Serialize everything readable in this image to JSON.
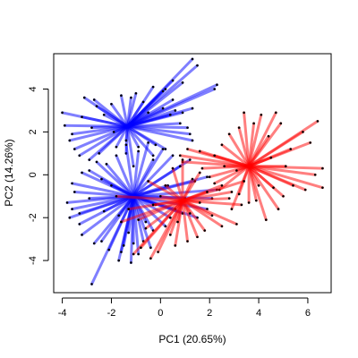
{
  "chart_data": {
    "type": "scatter",
    "subtype": "biplot-star",
    "title": "",
    "xlabel": "PC1 (20.65%)",
    "ylabel": "PC2 (14.26%)",
    "xlim": [
      -4.35,
      6.95
    ],
    "ylim": [
      -5.5,
      5.65
    ],
    "xticks": [
      -4,
      -2,
      0,
      2,
      4,
      6
    ],
    "xtick_labels": [
      "-4",
      "-2",
      "0",
      "2",
      "4",
      "6"
    ],
    "yticks": [
      -4,
      -2,
      0,
      2,
      4
    ],
    "ytick_labels": [
      "-4",
      "-2",
      "0",
      "2",
      "4"
    ],
    "grid": false,
    "legend": "none",
    "colors": {
      "blue": "#0000ff",
      "red": "#ff0000",
      "point": "#000000",
      "frame": "#000000"
    },
    "series": [
      {
        "color": "#0000ff",
        "stars": [
          {
            "centroid": [
              -1.35,
              2.25
            ],
            "points": [
              [
                1.3,
                5.4
              ],
              [
                1.5,
                5.1
              ],
              [
                2.3,
                4.2
              ],
              [
                2.2,
                4.0
              ],
              [
                0.5,
                4.4
              ],
              [
                0.9,
                4.3
              ],
              [
                -0.3,
                4.1
              ],
              [
                0.2,
                4.0
              ],
              [
                -1.0,
                3.8
              ],
              [
                -1.6,
                3.7
              ],
              [
                0.1,
                3.9
              ],
              [
                0.5,
                3.5
              ],
              [
                1.3,
                3.1
              ],
              [
                0.6,
                3.0
              ],
              [
                0.4,
                2.8
              ],
              [
                0.8,
                2.4
              ],
              [
                1.1,
                2.2
              ],
              [
                1.2,
                1.9
              ],
              [
                1.3,
                1.6
              ],
              [
                0.2,
                1.2
              ],
              [
                -0.3,
                0.9
              ],
              [
                -0.2,
                1.4
              ],
              [
                -0.9,
                1.3
              ],
              [
                -1.4,
                1.6
              ],
              [
                -1.8,
                1.3
              ],
              [
                -2.5,
                1.0
              ],
              [
                -2.9,
                0.7
              ],
              [
                -3.5,
                1.2
              ],
              [
                -3.7,
                1.6
              ],
              [
                -3.6,
                1.9
              ],
              [
                -3.9,
                2.3
              ],
              [
                -4.0,
                2.9
              ],
              [
                -3.2,
                2.7
              ],
              [
                -2.8,
                2.2
              ],
              [
                -2.6,
                3.2
              ],
              [
                -2.7,
                3.5
              ],
              [
                -3.1,
                3.6
              ],
              [
                -2.0,
                3.3
              ],
              [
                -2.3,
                2.8
              ],
              [
                -1.9,
                2.0
              ],
              [
                -1.4,
                1.0
              ],
              [
                -1.1,
                0.4
              ],
              [
                0.1,
                3.1
              ],
              [
                -0.5,
                2.9
              ],
              [
                -0.7,
                3.4
              ],
              [
                -1.2,
                3.6
              ],
              [
                0.9,
                2.9
              ],
              [
                -3.3,
                0.9
              ]
            ]
          },
          {
            "centroid": [
              -1.1,
              -1.0
            ],
            "points": [
              [
                -3.6,
                -0.4
              ],
              [
                -3.5,
                -0.8
              ],
              [
                -3.8,
                -1.3
              ],
              [
                -3.6,
                -1.6
              ],
              [
                -3.7,
                -2.0
              ],
              [
                -3.3,
                -2.3
              ],
              [
                -3.2,
                -2.8
              ],
              [
                -2.7,
                -3.2
              ],
              [
                -2.4,
                -3.1
              ],
              [
                -2.1,
                -3.5
              ],
              [
                -2.8,
                -5.1
              ],
              [
                -1.7,
                -4.0
              ],
              [
                -1.6,
                -3.6
              ],
              [
                -1.5,
                -3.3
              ],
              [
                -1.1,
                -3.2
              ],
              [
                -0.7,
                -3.1
              ],
              [
                -0.4,
                -3.4
              ],
              [
                -0.9,
                -3.7
              ],
              [
                -1.2,
                -4.1
              ],
              [
                -0.3,
                -2.6
              ],
              [
                0.2,
                -2.4
              ],
              [
                0.4,
                -2.0
              ],
              [
                0.6,
                -1.6
              ],
              [
                0.9,
                -1.8
              ],
              [
                1.5,
                -2.0
              ],
              [
                1.9,
                -1.6
              ],
              [
                2.1,
                -1.1
              ],
              [
                2.3,
                -0.7
              ],
              [
                1.4,
                -0.3
              ],
              [
                1.9,
                -0.1
              ],
              [
                0.8,
                0.4
              ],
              [
                1.2,
                0.7
              ],
              [
                0.5,
                0.9
              ],
              [
                0.1,
                1.2
              ],
              [
                -0.3,
                0.7
              ],
              [
                -0.5,
                1.5
              ],
              [
                -0.9,
                1.1
              ],
              [
                -1.4,
                1.4
              ],
              [
                -1.8,
                0.9
              ],
              [
                -2.2,
                0.5
              ],
              [
                -2.6,
                0.6
              ],
              [
                -2.9,
                0.2
              ],
              [
                -3.2,
                0.1
              ],
              [
                -2.4,
                -0.2
              ],
              [
                -2.0,
                -0.5
              ],
              [
                -1.7,
                -1.9
              ],
              [
                -2.3,
                -1.7
              ],
              [
                -0.6,
                -2.2
              ],
              [
                0.3,
                -0.5
              ],
              [
                -0.2,
                -1.4
              ],
              [
                1.0,
                -1.1
              ],
              [
                -1.3,
                -2.7
              ],
              [
                -2.9,
                -1.1
              ],
              [
                -3.3,
                -1.8
              ]
            ]
          }
        ]
      },
      {
        "color": "#ff0000",
        "stars": [
          {
            "centroid": [
              3.6,
              0.4
            ],
            "points": [
              [
                6.4,
                2.5
              ],
              [
                6.1,
                1.5
              ],
              [
                5.8,
                2.0
              ],
              [
                4.9,
                2.4
              ],
              [
                5.3,
                1.2
              ],
              [
                6.6,
                0.3
              ],
              [
                6.3,
                0.0
              ],
              [
                6.6,
                -0.6
              ],
              [
                5.9,
                -0.7
              ],
              [
                5.4,
                -0.5
              ],
              [
                5.0,
                -1.0
              ],
              [
                4.8,
                -1.6
              ],
              [
                4.3,
                -2.1
              ],
              [
                4.6,
                -0.6
              ],
              [
                3.9,
                -1.2
              ],
              [
                3.6,
                -1.3
              ],
              [
                3.2,
                -0.9
              ],
              [
                2.9,
                -1.6
              ],
              [
                2.4,
                -0.7
              ],
              [
                2.2,
                -0.4
              ],
              [
                1.7,
                0.3
              ],
              [
                2.2,
                0.9
              ],
              [
                1.6,
                1.1
              ],
              [
                1.1,
                1.2
              ],
              [
                0.8,
                0.9
              ],
              [
                0.9,
                0.6
              ],
              [
                2.5,
                1.4
              ],
              [
                2.8,
                1.9
              ],
              [
                3.2,
                2.2
              ],
              [
                3.4,
                2.9
              ],
              [
                3.8,
                2.4
              ],
              [
                4.1,
                2.8
              ],
              [
                4.4,
                1.8
              ],
              [
                4.7,
                2.9
              ],
              [
                5.1,
                0.4
              ],
              [
                4.5,
                0.8
              ],
              [
                2.0,
                -0.1
              ],
              [
                2.6,
                0.4
              ],
              [
                4.0,
                -0.5
              ],
              [
                3.1,
                0.2
              ]
            ]
          },
          {
            "centroid": [
              0.9,
              -1.2
            ],
            "points": [
              [
                2.5,
                -0.5
              ],
              [
                2.8,
                -1.1
              ],
              [
                3.3,
                -1.4
              ],
              [
                3.1,
                -2.3
              ],
              [
                2.5,
                -2.4
              ],
              [
                2.1,
                -1.9
              ],
              [
                1.8,
                -2.6
              ],
              [
                1.5,
                -2.9
              ],
              [
                1.1,
                -3.1
              ],
              [
                0.6,
                -3.3
              ],
              [
                0.4,
                -2.8
              ],
              [
                -0.1,
                -3.6
              ],
              [
                -0.4,
                -3.9
              ],
              [
                -0.8,
                -3.4
              ],
              [
                -1.1,
                -3.7
              ],
              [
                -0.6,
                -2.5
              ],
              [
                -0.9,
                -2.1
              ],
              [
                -1.3,
                -1.6
              ],
              [
                -1.6,
                -2.2
              ],
              [
                -0.3,
                -1.4
              ],
              [
                0.0,
                -1.0
              ],
              [
                0.2,
                -0.5
              ],
              [
                -0.5,
                -0.3
              ],
              [
                0.5,
                0.3
              ],
              [
                0.9,
                0.7
              ],
              [
                1.3,
                -0.2
              ],
              [
                1.6,
                0.1
              ],
              [
                1.9,
                -0.8
              ],
              [
                1.2,
                -1.8
              ],
              [
                0.7,
                -2.2
              ],
              [
                3.4,
                -0.3
              ],
              [
                2.9,
                -0.8
              ],
              [
                -1.8,
                -1.0
              ],
              [
                1.6,
                -1.3
              ]
            ]
          }
        ]
      }
    ]
  }
}
